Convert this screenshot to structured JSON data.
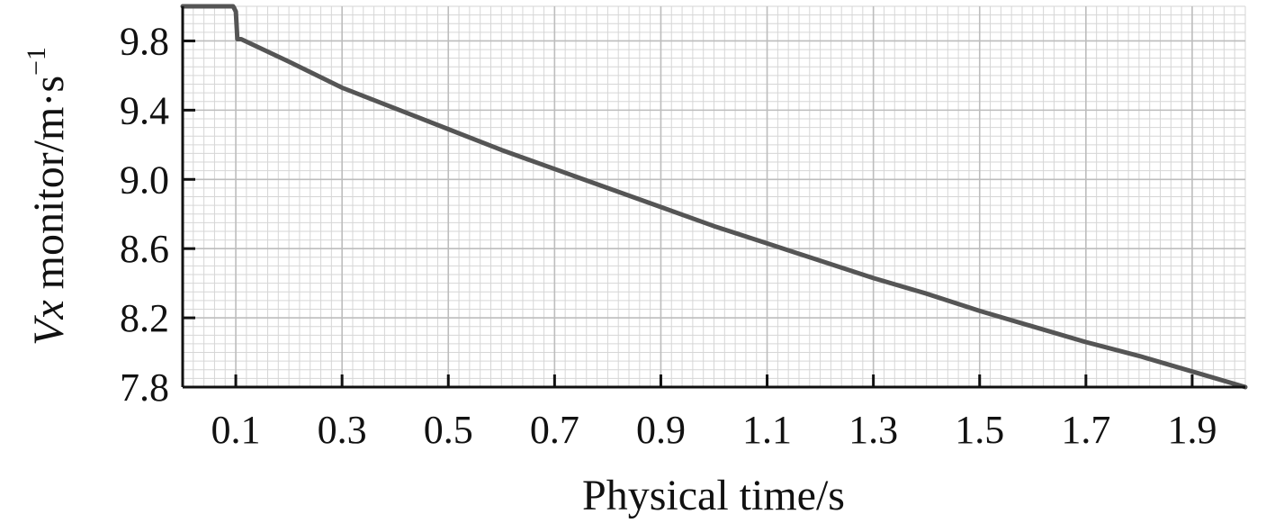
{
  "chart_data": {
    "type": "line",
    "title": "",
    "xlabel": "Physical time/s",
    "ylabel": {
      "italic": "Vx",
      "text": " monitor/m·s",
      "sup": "−1"
    },
    "xlim": [
      0.0,
      2.0
    ],
    "ylim": [
      7.8,
      10.0
    ],
    "grid": true,
    "x_ticks": [
      0.1,
      0.3,
      0.5,
      0.7,
      0.9,
      1.1,
      1.3,
      1.5,
      1.7,
      1.9
    ],
    "x_tick_labels": [
      "0.1",
      "0.3",
      "0.5",
      "0.7",
      "0.9",
      "1.1",
      "1.3",
      "1.5",
      "1.7",
      "1.9"
    ],
    "y_ticks": [
      7.8,
      8.2,
      8.6,
      9.0,
      9.4,
      9.8
    ],
    "y_tick_labels": [
      "7.8",
      "8.2",
      "8.6",
      "9.0",
      "9.4",
      "9.8"
    ],
    "colors": {
      "series": "#555555",
      "axis": "#111111"
    },
    "series": [
      {
        "x": [
          0.0,
          0.05,
          0.095,
          0.1,
          0.103,
          0.11,
          0.2,
          0.3,
          0.4,
          0.5,
          0.6,
          0.7,
          0.8,
          0.9,
          1.0,
          1.1,
          1.2,
          1.3,
          1.4,
          1.5,
          1.6,
          1.7,
          1.8,
          1.9,
          2.0
        ],
        "y": [
          10.0,
          10.0,
          10.0,
          9.97,
          9.81,
          9.81,
          9.68,
          9.53,
          9.41,
          9.29,
          9.17,
          9.06,
          8.95,
          8.84,
          8.73,
          8.63,
          8.53,
          8.43,
          8.34,
          8.24,
          8.15,
          8.06,
          7.98,
          7.89,
          7.8
        ]
      }
    ]
  }
}
